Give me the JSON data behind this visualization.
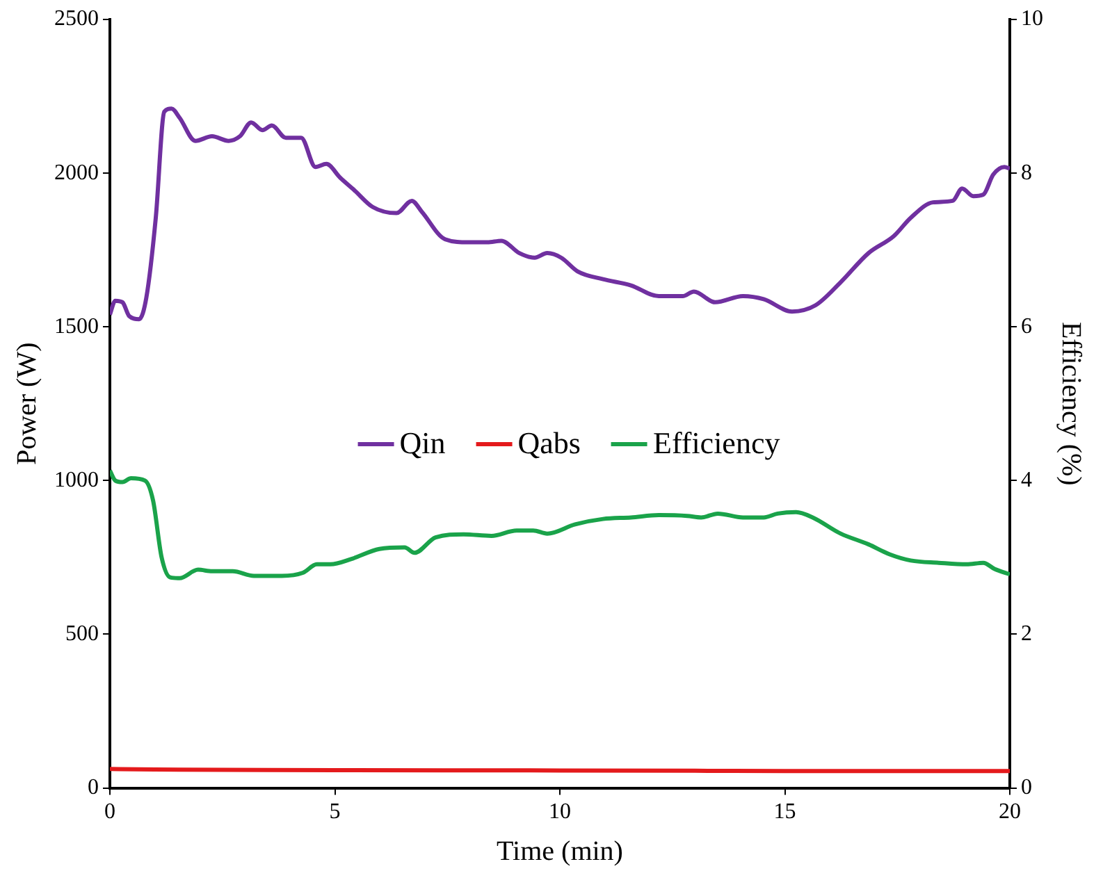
{
  "chart_data": {
    "type": "line",
    "xlabel": "Time (min)",
    "ylabel": "Power (W)",
    "y2label": "Efficiency (%)",
    "xlim": [
      0,
      20
    ],
    "xticks": [
      0,
      5,
      10,
      15,
      20
    ],
    "ylim": [
      0,
      2500
    ],
    "yticks": [
      0,
      500,
      1000,
      1500,
      2000,
      2500
    ],
    "y2lim": [
      0,
      10
    ],
    "y2ticks": [
      0,
      2,
      4,
      6,
      8,
      10
    ],
    "grid": false,
    "legend": "center",
    "marker": "none",
    "line_style": "solid",
    "series": [
      {
        "name": "Qin",
        "color": "#7030a0",
        "x": [
          0,
          0.12,
          0.28,
          0.43,
          0.65,
          0.81,
          1.02,
          1.21,
          1.37,
          1.55,
          1.9,
          2.27,
          2.64,
          2.89,
          3.14,
          3.39,
          3.6,
          3.91,
          4.25,
          4.57,
          4.81,
          5.12,
          5.43,
          5.84,
          6.37,
          6.71,
          6.93,
          7.45,
          7.98,
          8.39,
          8.7,
          9.1,
          9.44,
          9.72,
          10.03,
          10.4,
          10.96,
          11.58,
          12.2,
          12.73,
          12.98,
          13.45,
          14.07,
          14.53,
          15.16,
          15.68,
          16.24,
          16.86,
          17.42,
          17.8,
          18.29,
          18.73,
          18.94,
          19.19,
          19.41,
          19.63,
          19.88,
          20
        ],
        "values": [
          1540,
          1585,
          1580,
          1535,
          1525,
          1595,
          1855,
          2200,
          2210,
          2180,
          2105,
          2120,
          2105,
          2120,
          2165,
          2140,
          2155,
          2115,
          2115,
          2020,
          2030,
          1985,
          1945,
          1890,
          1870,
          1910,
          1875,
          1785,
          1775,
          1775,
          1780,
          1740,
          1725,
          1740,
          1725,
          1680,
          1655,
          1635,
          1600,
          1600,
          1615,
          1580,
          1600,
          1590,
          1550,
          1570,
          1645,
          1740,
          1795,
          1855,
          1905,
          1910,
          1950,
          1925,
          1930,
          1995,
          2020,
          2015
        ]
      },
      {
        "name": "Qabs",
        "color": "#e41a1c",
        "x": [
          0,
          1,
          5,
          10,
          13,
          15,
          18,
          20
        ],
        "values": [
          62,
          60,
          58,
          57,
          56,
          55,
          55,
          55
        ]
      },
      {
        "name": "Efficiency",
        "color": "#1aa34a",
        "axis": "y2",
        "x": [
          0,
          0.12,
          0.28,
          0.47,
          0.78,
          0.96,
          1.15,
          1.34,
          1.55,
          1.96,
          2.27,
          2.73,
          3.2,
          3.51,
          3.82,
          4.29,
          4.6,
          4.9,
          5.37,
          5.99,
          6.55,
          6.77,
          7.24,
          7.86,
          8.48,
          9.04,
          9.41,
          9.72,
          10.34,
          10.96,
          11.58,
          12.2,
          12.83,
          13.14,
          13.51,
          14.07,
          14.53,
          14.84,
          15.25,
          15.62,
          16.24,
          16.86,
          17.33,
          17.8,
          18.42,
          19.04,
          19.41,
          19.66,
          20
        ],
        "values": [
          4.13,
          4.0,
          3.98,
          4.03,
          4.0,
          3.74,
          3.0,
          2.74,
          2.73,
          2.84,
          2.82,
          2.82,
          2.76,
          2.76,
          2.76,
          2.8,
          2.91,
          2.91,
          2.98,
          3.11,
          3.13,
          3.06,
          3.26,
          3.3,
          3.28,
          3.35,
          3.35,
          3.31,
          3.43,
          3.5,
          3.52,
          3.55,
          3.54,
          3.52,
          3.57,
          3.52,
          3.52,
          3.57,
          3.59,
          3.52,
          3.31,
          3.17,
          3.04,
          2.96,
          2.93,
          2.91,
          2.93,
          2.85,
          2.78
        ]
      }
    ]
  }
}
